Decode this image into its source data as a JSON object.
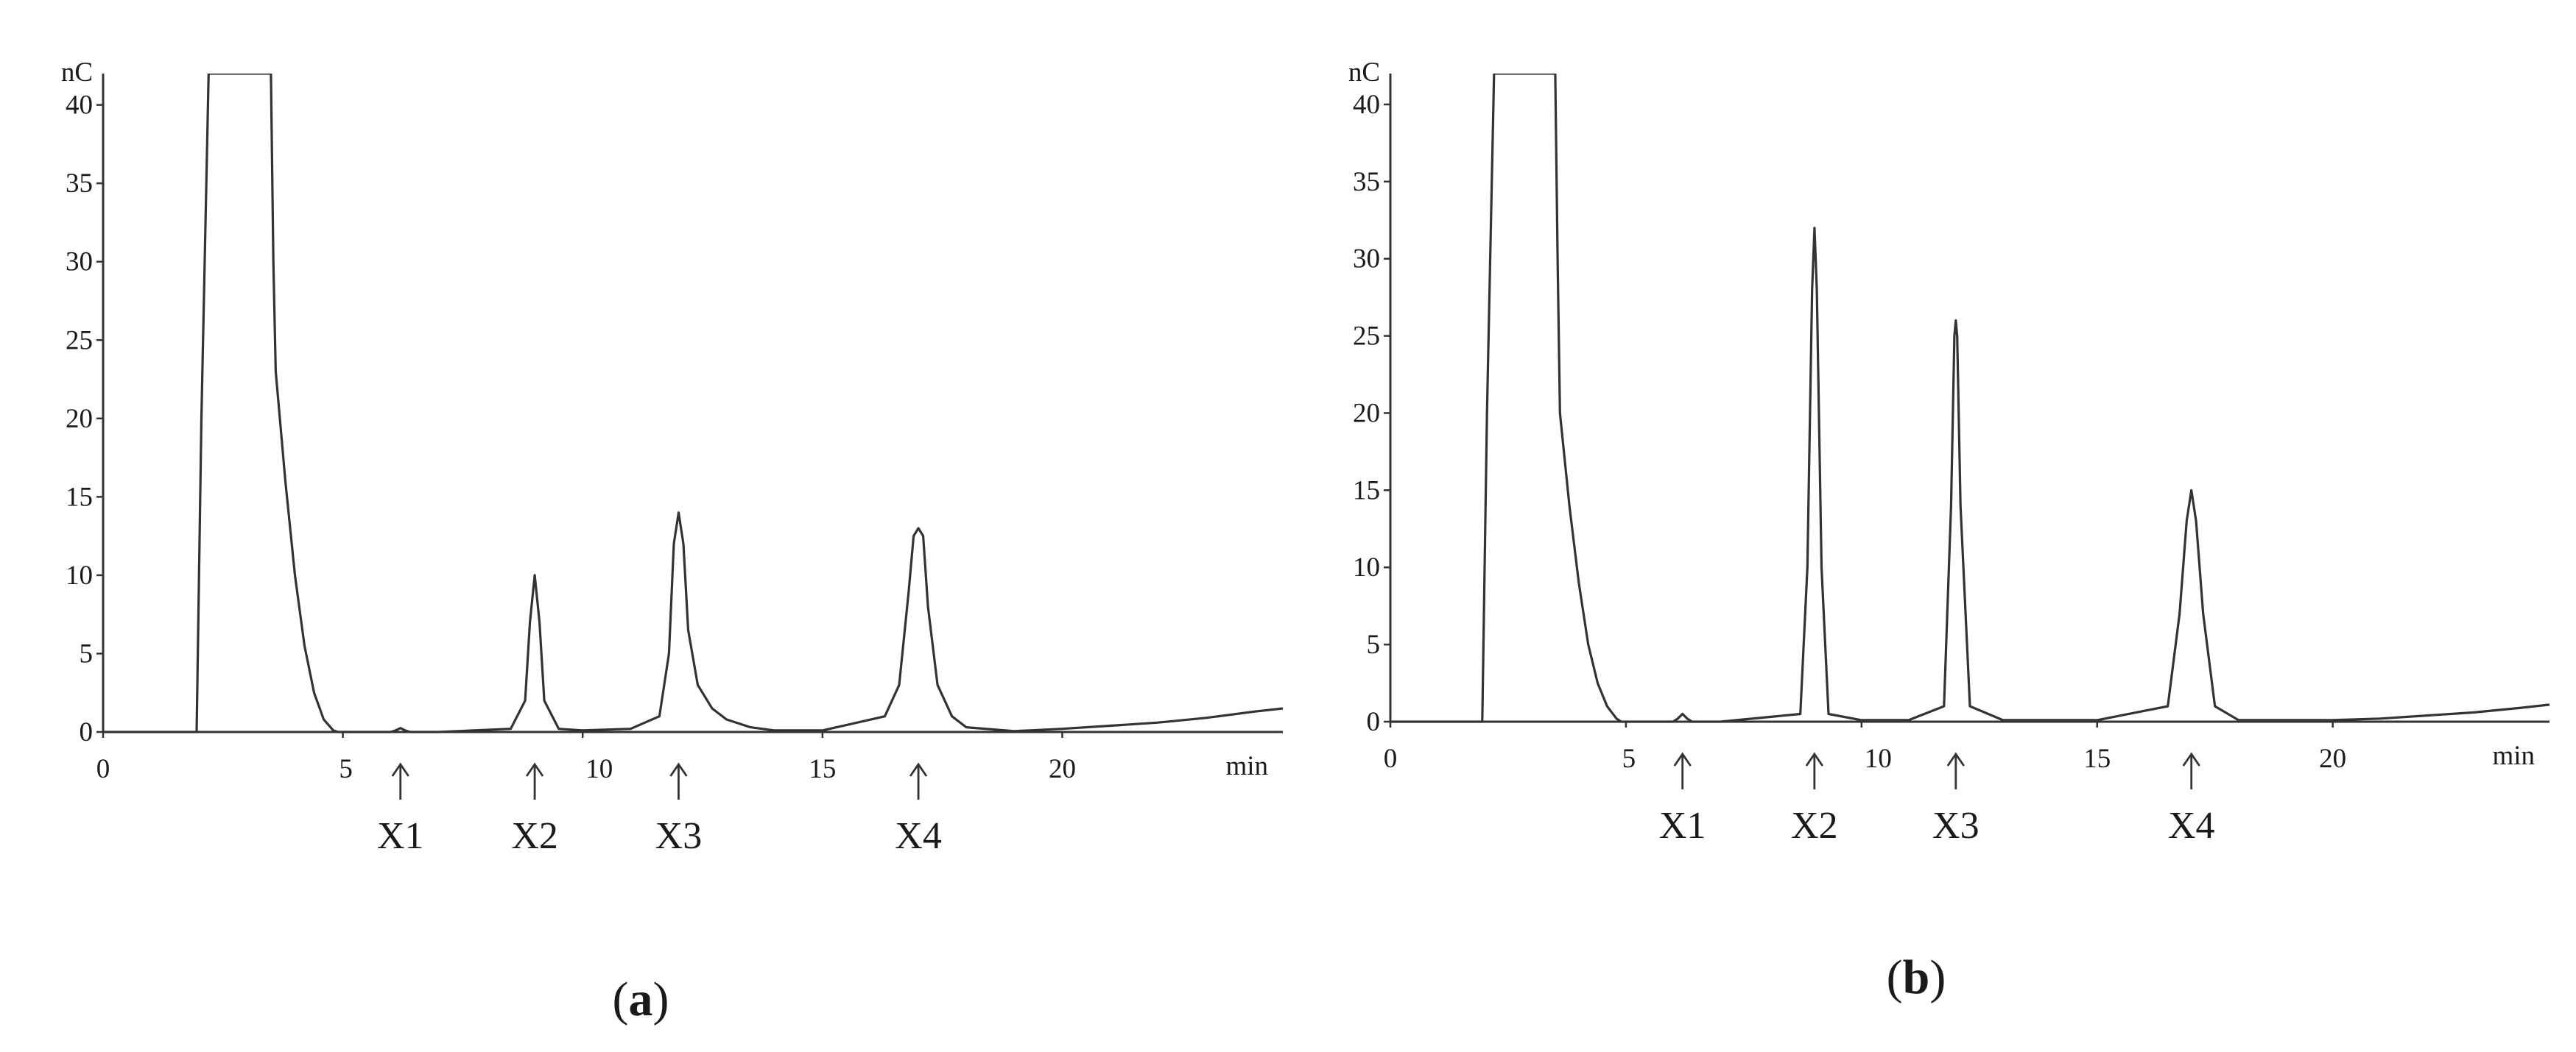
{
  "figure": {
    "ink_color": "#333333",
    "background": "#ffffff"
  },
  "chart_data": [
    {
      "type": "line",
      "panel_label": "(a)",
      "panel_letter": "a",
      "ylabel": "nC",
      "xlabel": "min",
      "xlim": [
        0,
        24.6
      ],
      "ylim": [
        0,
        42
      ],
      "xticks": [
        0,
        5,
        10,
        15,
        20
      ],
      "yticks": [
        0,
        5,
        10,
        15,
        20,
        25,
        30,
        35,
        40
      ],
      "grid": false,
      "markers": [
        {
          "label": "X1",
          "x": 6.2
        },
        {
          "label": "X2",
          "x": 9.0
        },
        {
          "label": "X3",
          "x": 12.0
        },
        {
          "label": "X4",
          "x": 17.0
        }
      ],
      "series": [
        {
          "x": [
            0,
            1.5,
            1.95,
            2.05,
            2.2,
            2.3,
            2.4,
            2.6,
            3.0,
            3.3,
            3.5,
            3.55,
            3.6,
            3.8,
            4.0,
            4.2,
            4.4,
            4.6,
            4.8,
            4.9,
            5.0,
            6.0,
            6.1,
            6.2,
            6.3,
            6.4,
            7.0,
            8.5,
            8.8,
            8.9,
            9.0,
            9.1,
            9.2,
            9.5,
            10.0,
            11.0,
            11.6,
            11.8,
            11.9,
            12.0,
            12.1,
            12.2,
            12.4,
            12.7,
            13.0,
            13.5,
            14.0,
            15.0,
            16.3,
            16.6,
            16.8,
            16.9,
            17.0,
            17.1,
            17.2,
            17.4,
            17.7,
            18.0,
            19.0,
            20.0,
            21.0,
            22.0,
            23.0,
            24.0,
            24.6
          ],
          "values": [
            0,
            0,
            0,
            20,
            42,
            42,
            42,
            42,
            42,
            42,
            42,
            30,
            23,
            16,
            10,
            5.5,
            2.5,
            0.8,
            0.1,
            0,
            0,
            0,
            0.1,
            0.25,
            0.1,
            0,
            0,
            0.2,
            2.0,
            7.0,
            10.0,
            7.0,
            2.0,
            0.2,
            0.1,
            0.2,
            1.0,
            5.0,
            12.0,
            14.0,
            12.0,
            6.5,
            3.0,
            1.5,
            0.8,
            0.3,
            0.1,
            0.1,
            1.0,
            3.0,
            9.0,
            12.5,
            13.0,
            12.5,
            8.0,
            3.0,
            1.0,
            0.3,
            0.05,
            0.2,
            0.4,
            0.6,
            0.9,
            1.3,
            1.5
          ]
        }
      ]
    },
    {
      "type": "line",
      "panel_label": "(b)",
      "panel_letter": "b",
      "ylabel": "nC",
      "xlabel": "min",
      "xlim": [
        0,
        24.6
      ],
      "ylim": [
        0,
        42
      ],
      "xticks": [
        0,
        5,
        10,
        15,
        20
      ],
      "yticks": [
        0,
        5,
        10,
        15,
        20,
        25,
        30,
        35,
        40
      ],
      "grid": false,
      "markers": [
        {
          "label": "X1",
          "x": 6.2
        },
        {
          "label": "X2",
          "x": 9.0
        },
        {
          "label": "X3",
          "x": 12.0
        },
        {
          "label": "X4",
          "x": 17.0
        }
      ],
      "series": [
        {
          "x": [
            0,
            1.5,
            1.95,
            2.05,
            2.2,
            2.3,
            2.4,
            2.6,
            3.0,
            3.3,
            3.5,
            3.55,
            3.6,
            3.8,
            4.0,
            4.2,
            4.4,
            4.6,
            4.8,
            4.9,
            5.0,
            6.0,
            6.1,
            6.2,
            6.3,
            6.4,
            7.0,
            8.7,
            8.85,
            8.95,
            9.0,
            9.05,
            9.15,
            9.3,
            10.0,
            11.0,
            11.75,
            11.9,
            11.97,
            12.0,
            12.03,
            12.1,
            12.3,
            13.0,
            14.0,
            15.0,
            16.5,
            16.75,
            16.9,
            17.0,
            17.1,
            17.25,
            17.5,
            18.0,
            19.0,
            20.0,
            21.0,
            22.0,
            23.0,
            24.0,
            24.6
          ],
          "values": [
            0,
            0,
            0,
            20,
            42,
            42,
            42,
            42,
            42,
            42,
            42,
            30,
            20,
            14,
            9,
            5,
            2.5,
            1.0,
            0.2,
            0,
            0,
            0,
            0.2,
            0.5,
            0.2,
            0,
            0,
            0.5,
            10,
            28,
            32,
            28,
            10,
            0.5,
            0.1,
            0.1,
            1.0,
            14,
            25,
            26,
            25,
            14,
            1.0,
            0.1,
            0.1,
            0.1,
            1.0,
            7.0,
            13.0,
            15.0,
            13.0,
            7.0,
            1.0,
            0.1,
            0.1,
            0.1,
            0.2,
            0.4,
            0.6,
            0.9,
            1.1
          ]
        }
      ]
    }
  ]
}
